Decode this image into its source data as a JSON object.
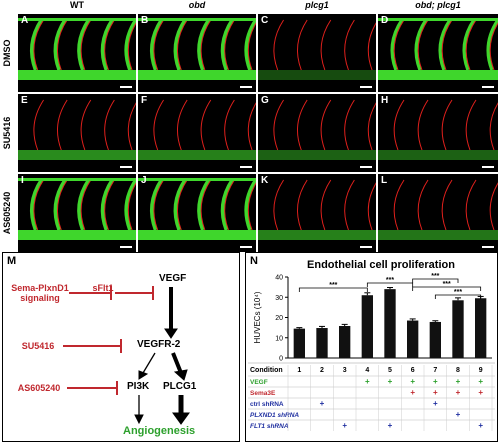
{
  "columns": [
    "WT",
    "obd",
    "plcg1",
    "obd; plcg1"
  ],
  "rows": [
    "DMSO",
    "SU5416",
    "AS605240"
  ],
  "panel_letters": [
    "A",
    "B",
    "C",
    "D",
    "E",
    "F",
    "G",
    "H",
    "I",
    "J",
    "K",
    "L"
  ],
  "panel_m": {
    "letter": "M",
    "inhibitors": [
      "Sema-PlxnD1 signaling",
      "SU5416",
      "AS605240"
    ],
    "sflt1": "sFlt1",
    "nodes": [
      "VEGF",
      "VEGFR-2",
      "PI3K",
      "PLCG1"
    ],
    "outcome": "Angiogenesis"
  },
  "panel_n": {
    "letter": "N",
    "title": "Endothelial cell proliferation",
    "conditions_label": "Condition",
    "rows": [
      {
        "label": "VEGF",
        "marks": [
          "",
          "",
          "",
          "+",
          "+",
          "+",
          "+",
          "+",
          "+"
        ],
        "mark": "+"
      },
      {
        "label": "Sema3E",
        "marks": [
          "",
          "",
          "",
          "",
          "",
          "+",
          "+",
          "+",
          "+"
        ],
        "mark": "+"
      },
      {
        "label": "ctrl shRNA",
        "marks": [
          "",
          "+",
          "",
          "",
          "",
          "",
          "+",
          "",
          ""
        ],
        "mark": "+"
      },
      {
        "label": "PLXND1 shRNA",
        "marks": [
          "",
          "",
          "",
          "",
          "",
          "",
          "",
          "+",
          ""
        ],
        "mark": "+"
      },
      {
        "label": "FLT1 shRNA",
        "marks": [
          "",
          "",
          "+",
          "",
          "+",
          "",
          "",
          "",
          "+"
        ],
        "mark": "+"
      }
    ],
    "sig": "***",
    "colors": {
      "VEGF": "#2da02d",
      "Sema3E": "#c0282e",
      "shRNA": "#1f2fa0"
    }
  },
  "chart_data": {
    "type": "bar",
    "categories": [
      "1",
      "2",
      "3",
      "4",
      "5",
      "6",
      "7",
      "8",
      "9"
    ],
    "values": [
      14.5,
      14.8,
      15.8,
      31,
      34,
      18.5,
      17.8,
      28.5,
      29.5
    ],
    "errors": [
      0.5,
      0.8,
      0.8,
      1.2,
      0.8,
      0.8,
      0.6,
      1.2,
      0.9
    ],
    "ylabel": "HUVECs (10⁴)",
    "yticks": [
      "0",
      "10",
      "20",
      "30",
      "40"
    ],
    "ylim": [
      0,
      40
    ]
  }
}
